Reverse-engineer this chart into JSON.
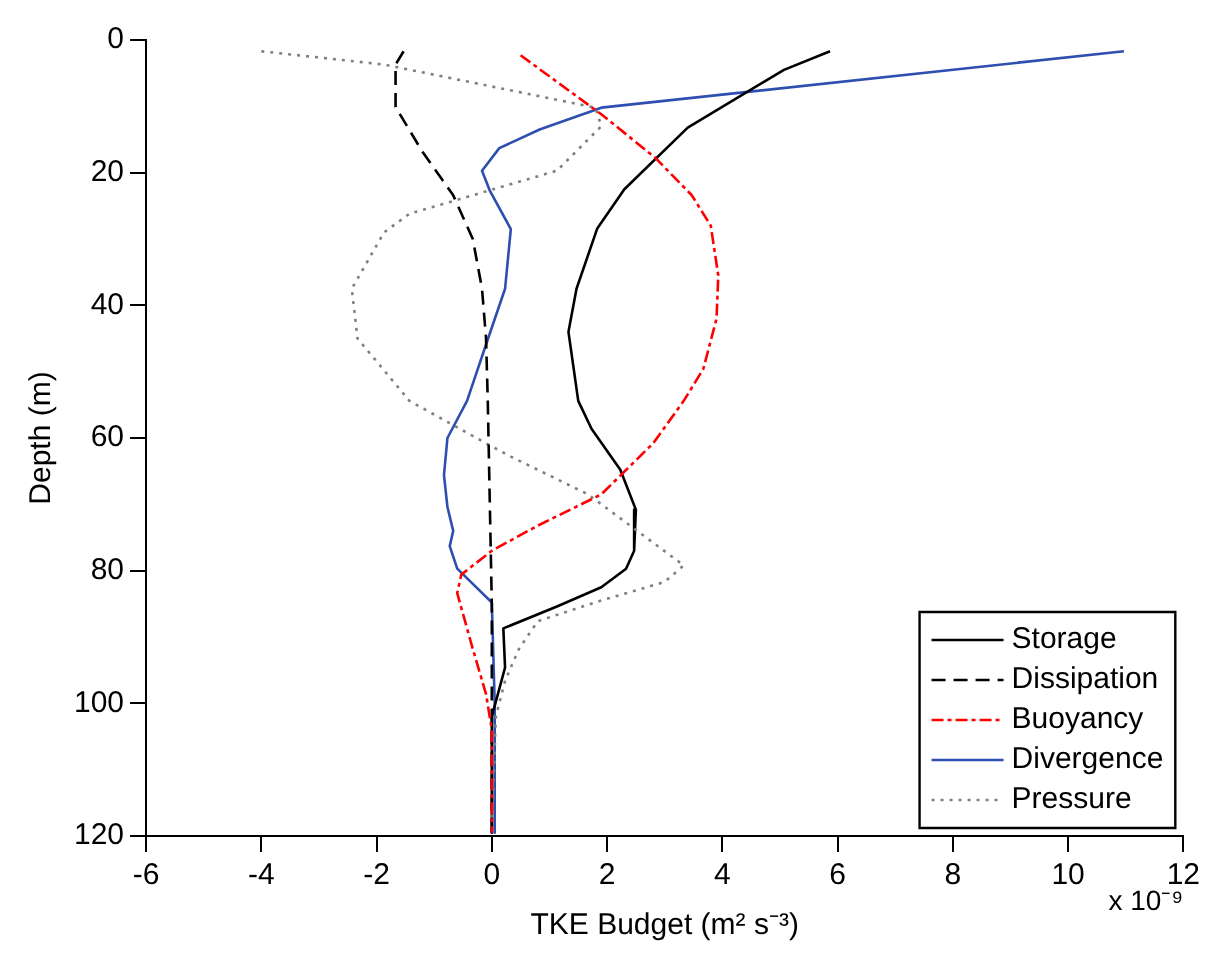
{
  "chart_data": {
    "type": "line",
    "xlabel": "TKE Budget (m² s⁻³)",
    "ylabel": "Depth (m)",
    "annotations": [
      "x 10⁻⁹"
    ],
    "xlim": [
      -6,
      12
    ],
    "xticks": [
      -6,
      -4,
      -2,
      0,
      2,
      4,
      6,
      8,
      10,
      12
    ],
    "ylim": [
      120,
      0
    ],
    "yticks": [
      0,
      20,
      40,
      60,
      80,
      100,
      120
    ],
    "grid": false,
    "legend": "bottom right",
    "marker": "none",
    "series": [
      {
        "name": "Storage",
        "color": "#000000",
        "line_style": "solid",
        "x": [
          5.87,
          5.07,
          3.4,
          2.3,
          1.83,
          1.47,
          1.33,
          1.5,
          1.73,
          2.23,
          2.5,
          2.47,
          2.33,
          1.9,
          1.13,
          0.2,
          0.23,
          0,
          0
        ],
        "values": [
          1.7,
          4.5,
          13.2,
          22.5,
          28.4,
          37.5,
          44,
          54.4,
          58.6,
          64.8,
          70.8,
          77,
          79.7,
          82.5,
          85.4,
          88.7,
          94.6,
          102,
          119.5
        ]
      },
      {
        "name": "Dissipation",
        "color": "#000000",
        "line_style": "dashed",
        "x": [
          -1.53,
          -1.67,
          -1.67,
          -1.2,
          -0.67,
          -0.33,
          -0.17,
          -0.1,
          -0.07,
          0,
          0
        ],
        "values": [
          1.7,
          3.7,
          10.1,
          16.9,
          23.4,
          30,
          37.5,
          45,
          54.4,
          85,
          119.5
        ]
      },
      {
        "name": "Buoyancy",
        "color": "#ff0000",
        "line_style": "dashdot",
        "x": [
          0.5,
          1.9,
          2.83,
          3.47,
          3.8,
          3.93,
          3.9,
          3.67,
          3.33,
          2.8,
          1.9,
          0.8,
          0,
          -0.53,
          -0.6,
          -0.33,
          -0.1,
          0,
          0
        ],
        "values": [
          2.3,
          11.2,
          17.7,
          23.4,
          28,
          35.5,
          42,
          49.6,
          54.4,
          60.8,
          68.5,
          73.2,
          77,
          80.6,
          83.4,
          91.8,
          98.6,
          104,
          119.5
        ]
      },
      {
        "name": "Divergence",
        "color": "#2f4fb0",
        "line_style": "solid",
        "x": [
          10.97,
          1.9,
          0.83,
          0.13,
          -0.17,
          -0.03,
          0.33,
          0.23,
          -0.1,
          -0.43,
          -0.77,
          -0.83,
          -0.77,
          -0.67,
          -0.73,
          -0.6,
          0,
          0.05,
          0.05
        ],
        "values": [
          1.7,
          10.2,
          13.5,
          16.3,
          19.7,
          22.8,
          28.5,
          37.5,
          45.9,
          54.4,
          60,
          65.6,
          70.4,
          74,
          76.3,
          79.7,
          84.8,
          100,
          119.5
        ]
      },
      {
        "name": "Pressure",
        "color": "#808080",
        "line_style": "dotted",
        "x": [
          -4,
          -1.87,
          1.8,
          1.9,
          1.13,
          -1.43,
          -1.87,
          -2.43,
          -2.33,
          -1.43,
          -0.1,
          0.33,
          1.67,
          3.33,
          3,
          1.9,
          0.8,
          0.47,
          0.23,
          0.07,
          0
        ],
        "values": [
          1.7,
          3.7,
          10.2,
          13,
          19.7,
          26.2,
          29,
          37.5,
          45,
          54.4,
          60.8,
          62.8,
          68.5,
          79.2,
          81.7,
          84.5,
          87.6,
          91.8,
          96.6,
          102,
          119.5
        ]
      }
    ]
  }
}
